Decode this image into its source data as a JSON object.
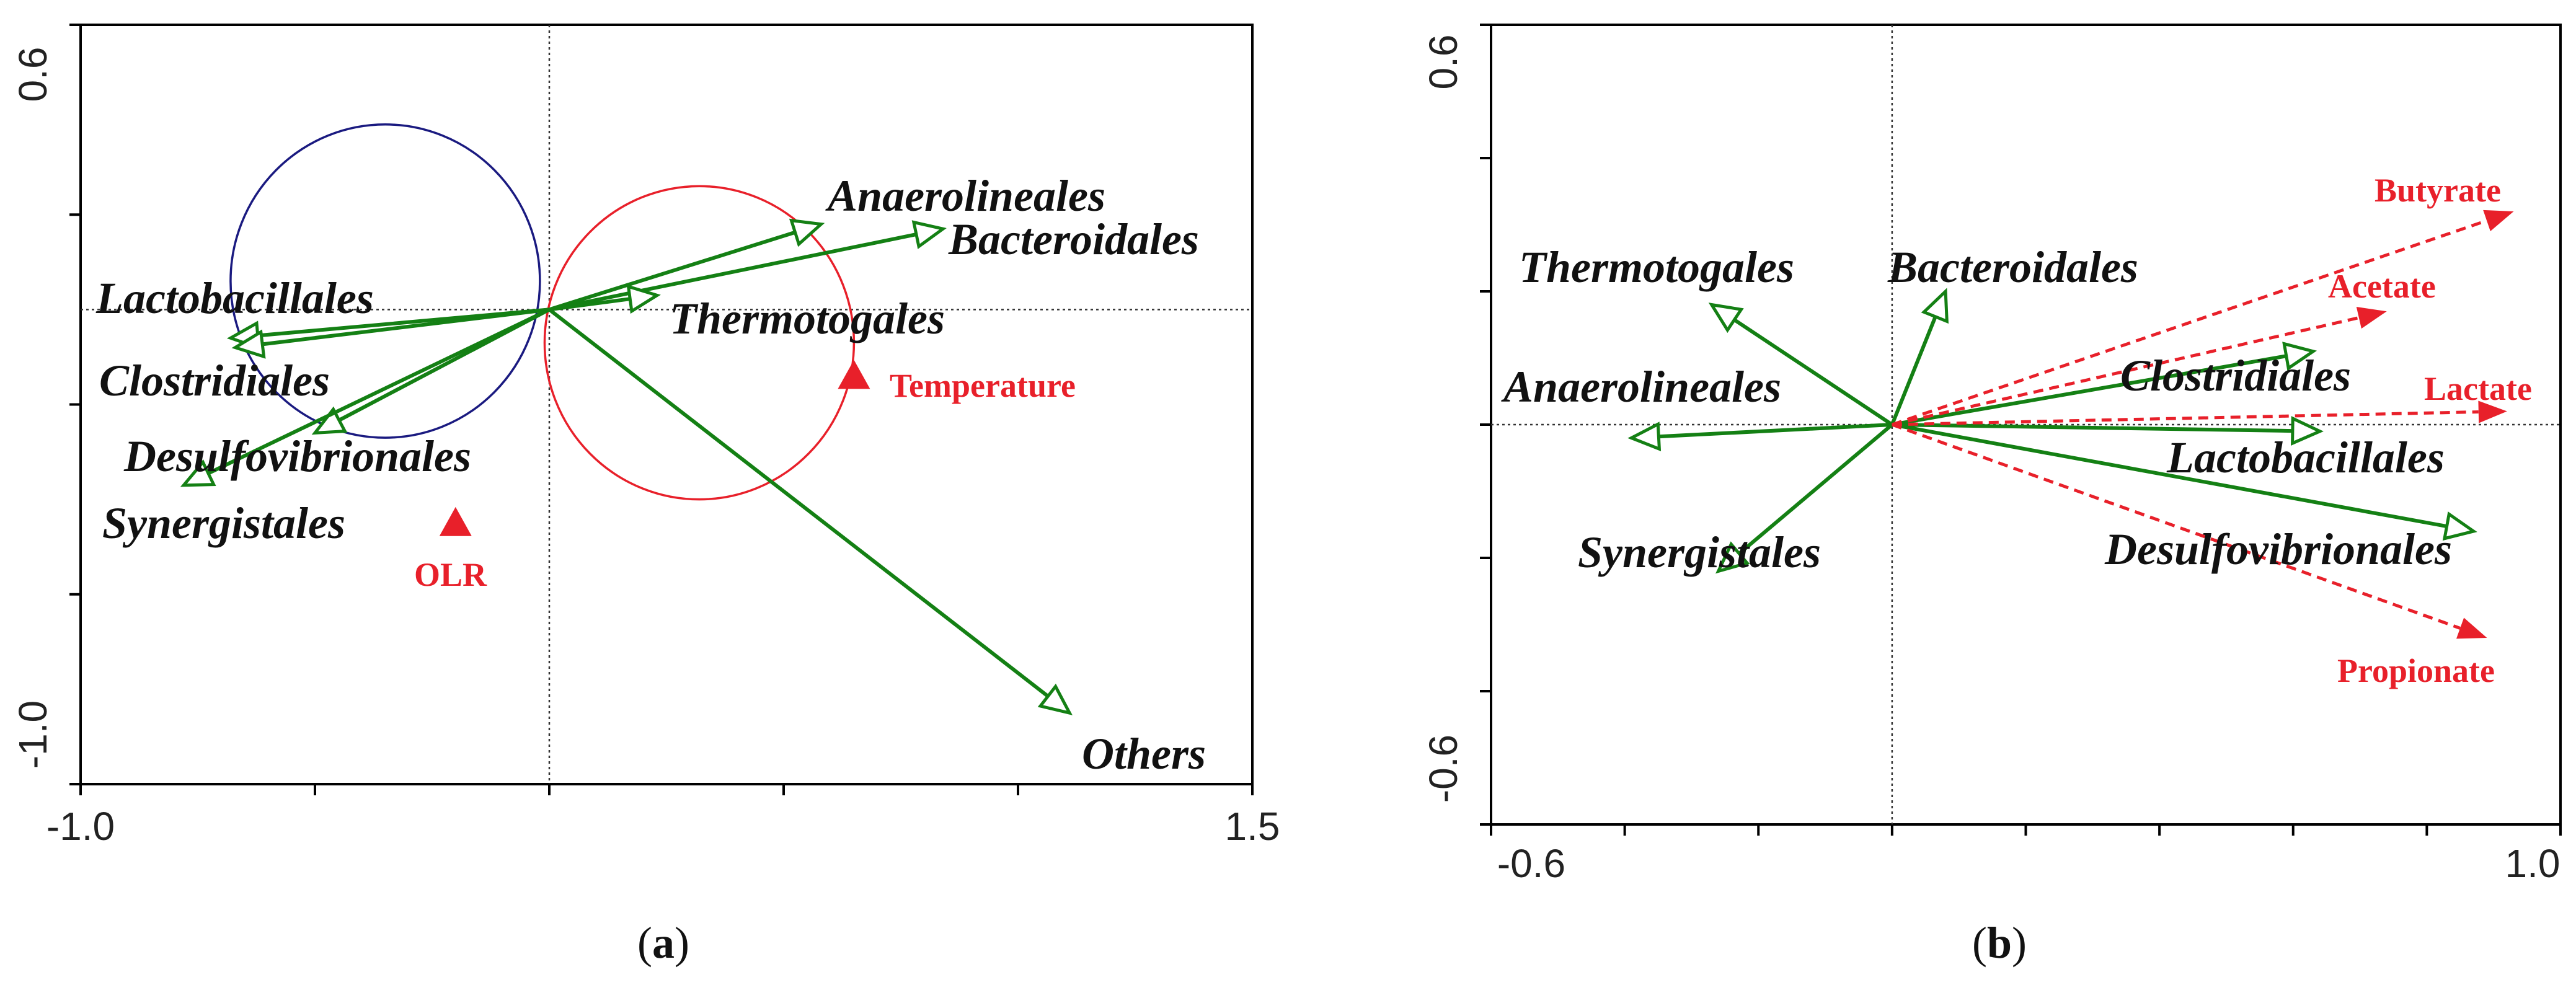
{
  "colors": {
    "species": "#148014",
    "env": "#e8202a",
    "circle_a_blue": "#1a1a80",
    "circle_a_red": "#e8202a"
  },
  "chart_data": [
    {
      "type": "scatter",
      "panel_label": "a",
      "xlim": [
        -1.0,
        1.5
      ],
      "ylim": [
        -1.0,
        0.6
      ],
      "x_tick_labels": [
        "-1.0",
        "1.5"
      ],
      "y_tick_labels": [
        "0.6",
        "-1.0"
      ],
      "species_arrows": [
        {
          "name": "Anaerolineales",
          "x": 0.58,
          "y": 0.18
        },
        {
          "name": "Bacteroidales",
          "x": 0.84,
          "y": 0.17
        },
        {
          "name": "Thermotogales",
          "x": 0.23,
          "y": 0.03
        },
        {
          "name": "Lactobacillales",
          "x": -0.68,
          "y": -0.06
        },
        {
          "name": "Clostridiales",
          "x": -0.67,
          "y": -0.08
        },
        {
          "name": "Desulfovibrionales",
          "x": -0.5,
          "y": -0.26
        },
        {
          "name": "Synergistales",
          "x": -0.78,
          "y": -0.37
        },
        {
          "name": "Others",
          "x": 1.11,
          "y": -0.85
        }
      ],
      "env_points": [
        {
          "name": "Temperature",
          "x": 0.65,
          "y": -0.14
        },
        {
          "name": "OLR",
          "x": -0.2,
          "y": -0.45
        }
      ],
      "circles": [
        {
          "color": "blue",
          "cx": -0.35,
          "cy": 0.06,
          "r": 0.33
        },
        {
          "color": "red",
          "cx": 0.32,
          "cy": -0.07,
          "r": 0.33
        }
      ]
    },
    {
      "type": "scatter",
      "panel_label": "b",
      "xlim": [
        -0.6,
        1.0
      ],
      "ylim": [
        -0.6,
        0.6
      ],
      "x_tick_labels": [
        "-0.6",
        "1.0"
      ],
      "y_tick_labels": [
        "0.6",
        "-0.6"
      ],
      "species_arrows": [
        {
          "name": "Thermotogales",
          "x": -0.27,
          "y": 0.18
        },
        {
          "name": "Bacteroidales",
          "x": 0.08,
          "y": 0.2
        },
        {
          "name": "Anaerolineales",
          "x": -0.39,
          "y": -0.02
        },
        {
          "name": "Synergistales",
          "x": -0.26,
          "y": -0.22
        },
        {
          "name": "Clostridiales",
          "x": 0.63,
          "y": 0.11
        },
        {
          "name": "Lactobacillales",
          "x": 0.64,
          "y": -0.01
        },
        {
          "name": "Desulfovibrionales",
          "x": 0.87,
          "y": -0.16
        }
      ],
      "env_arrows": [
        {
          "name": "Butyrate",
          "x": 0.93,
          "y": 0.32
        },
        {
          "name": "Acetate",
          "x": 0.74,
          "y": 0.17
        },
        {
          "name": "Lactate",
          "x": 0.92,
          "y": 0.02
        },
        {
          "name": "Propionate",
          "x": 0.89,
          "y": -0.32
        }
      ]
    }
  ]
}
